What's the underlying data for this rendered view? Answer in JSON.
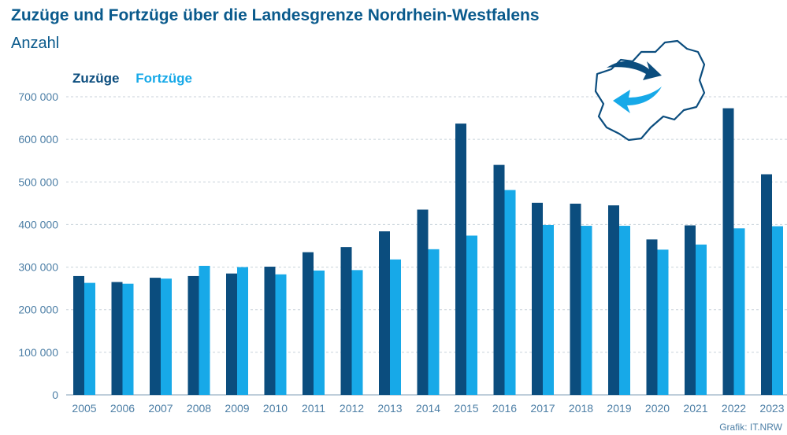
{
  "header": {
    "title": "Zuzüge und Fortzüge über die Landesgrenze Nordrhein-Westfalens",
    "subtitle": "Anzahl"
  },
  "footer": {
    "credit": "Grafik: IT.NRW"
  },
  "colors": {
    "zuzuege": "#0b4d7e",
    "fortzuege": "#17a9e8",
    "text": "#0a5a8c",
    "axis": "#4d7fa6"
  },
  "logo": {
    "icon": "nrw-map-arrows-icon"
  },
  "chart_data": {
    "type": "bar",
    "title": "Zuzüge und Fortzüge über die Landesgrenze Nordrhein-Westfalens",
    "subtitle": "Anzahl",
    "legend_position": "top-left",
    "grid": true,
    "ylim": [
      0,
      700000
    ],
    "yticks": [
      0,
      100000,
      200000,
      300000,
      400000,
      500000,
      600000,
      700000
    ],
    "ytick_labels": [
      "0",
      "100 000",
      "200 000",
      "300 000",
      "400 000",
      "500 000",
      "600 000",
      "700 000"
    ],
    "categories": [
      "2005",
      "2006",
      "2007",
      "2008",
      "2009",
      "2010",
      "2011",
      "2012",
      "2013",
      "2014",
      "2015",
      "2016",
      "2017",
      "2018",
      "2019",
      "2020",
      "2021",
      "2022",
      "2023"
    ],
    "series": [
      {
        "name": "Zuzüge",
        "values": [
          279000,
          265000,
          275000,
          279000,
          285000,
          301000,
          335000,
          347000,
          384000,
          435000,
          637000,
          540000,
          451000,
          449000,
          445000,
          365000,
          398000,
          673000,
          518000
        ]
      },
      {
        "name": "Fortzüge",
        "values": [
          263000,
          261000,
          273000,
          303000,
          300000,
          283000,
          292000,
          293000,
          318000,
          342000,
          374000,
          481000,
          399000,
          397000,
          397000,
          341000,
          353000,
          391000,
          396000
        ]
      }
    ]
  }
}
